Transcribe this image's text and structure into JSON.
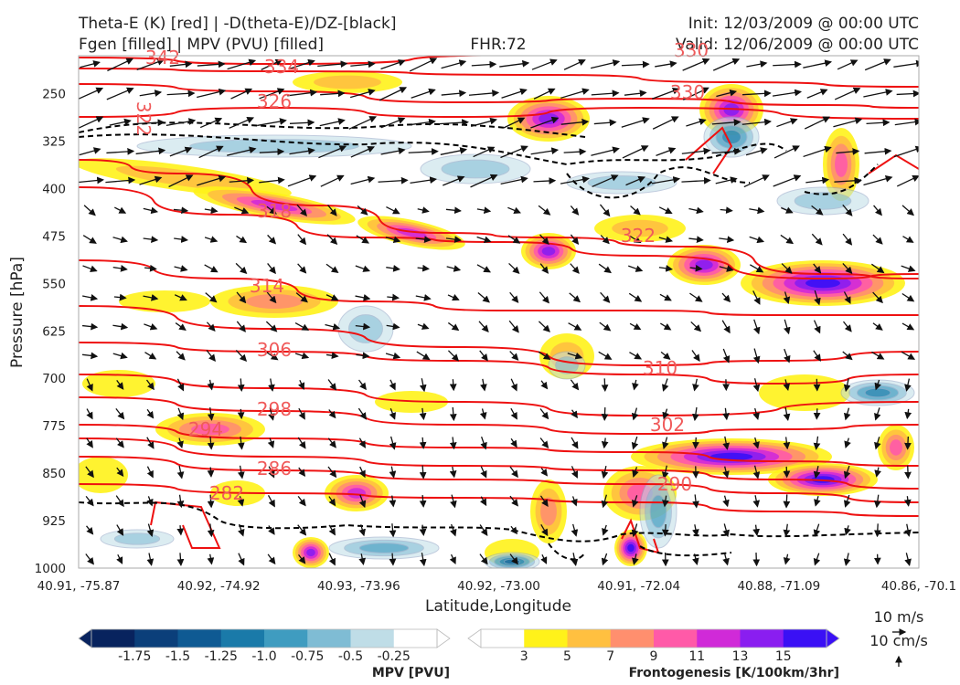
{
  "titles": {
    "left_line1": "Theta-E (K) [red] | -D(theta-E)/DZ-[black]",
    "left_line2": "Fgen [filled] | MPV (PVU) [filled]",
    "center": "FHR:72",
    "right_line1": "Init: 12/03/2009 @ 00:00 UTC",
    "right_line2": "Valid: 12/06/2009 @ 00:00 UTC"
  },
  "chart_data": {
    "type": "cross-section",
    "xlabel": "Latitude,Longitude",
    "ylabel": "Pressure [hPa]",
    "x_ticks": [
      "40.91, -75.87",
      "40.92, -74.92",
      "40.93, -73.96",
      "40.92, -73.00",
      "40.91, -72.04",
      "40.88, -71.09",
      "40.86, -70.1"
    ],
    "y_ticks": [
      "250",
      "325",
      "400",
      "475",
      "550",
      "625",
      "700",
      "775",
      "850",
      "925",
      "1000"
    ],
    "y_values": [
      250,
      325,
      400,
      475,
      550,
      625,
      700,
      775,
      850,
      925,
      1000
    ],
    "ylim": [
      1000,
      190
    ],
    "y_scale": "linear, inverted",
    "theta_e_contour_labels": [
      "342",
      "334",
      "326",
      "322",
      "318",
      "314",
      "306",
      "298",
      "294",
      "286",
      "282",
      "330",
      "322",
      "310",
      "302",
      "290",
      "330"
    ],
    "theta_e_color": "#ee1111",
    "stability_contour_color": "#000000",
    "mpv_colorbar": {
      "label": "MPV [PVU]",
      "tick_labels": [
        "-1.75",
        "-1.5",
        "-1.25",
        "-1.0",
        "-0.75",
        "-0.5",
        "-0.25"
      ],
      "colors": [
        "#08235e",
        "#0b3f7a",
        "#0f5a93",
        "#1a7aa9",
        "#3f9cc0",
        "#7fbcd4",
        "#bfdde7",
        "#ffffff"
      ]
    },
    "fgen_colorbar": {
      "label": "Frontogenesis [K/100km/3hr]",
      "tick_labels": [
        "3",
        "5",
        "7",
        "9",
        "11",
        "13",
        "15"
      ],
      "colors": [
        "#ffffff",
        "#fff21a",
        "#ffc040",
        "#ff8f6e",
        "#ff5aa8",
        "#d02ad8",
        "#8a1ef0",
        "#3a10f5"
      ]
    },
    "wind_reference": {
      "horizontal": "10 m/s",
      "vertical": "10 cm/s"
    },
    "grid": false
  }
}
